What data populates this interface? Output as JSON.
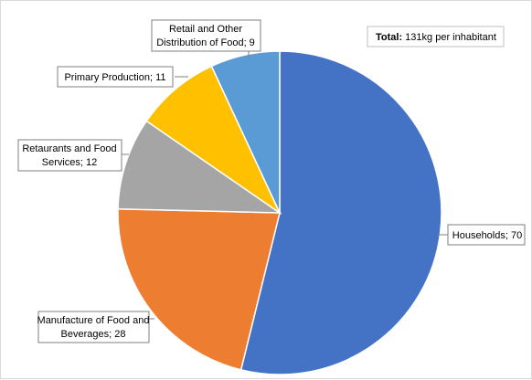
{
  "chart_data": {
    "type": "pie",
    "slices": [
      {
        "label": "Households",
        "value": 70,
        "color": "#4472C4",
        "label_text": "Households; 70"
      },
      {
        "label": "Manufacture of Food and Beverages",
        "value": 28,
        "color": "#ED7D31",
        "label_text": "Manufacture of Food and Beverages; 28"
      },
      {
        "label": "Retaurants and Food Services",
        "value": 12,
        "color": "#A5A5A5",
        "label_text": "Retaurants and Food Services; 12"
      },
      {
        "label": "Primary Production",
        "value": 11,
        "color": "#FFC000",
        "label_text": "Primary Production; 11"
      },
      {
        "label": "Retail and Other Distribution of Food",
        "value": 9,
        "color": "#5B9BD5",
        "label_text": "Retail and Other Distribution of Food; 9"
      }
    ],
    "annotation": {
      "bold": "Total:",
      "text": " 131kg per inhabitant"
    },
    "start_angle": "12 o'clock",
    "direction": "clockwise",
    "legend": "none"
  }
}
